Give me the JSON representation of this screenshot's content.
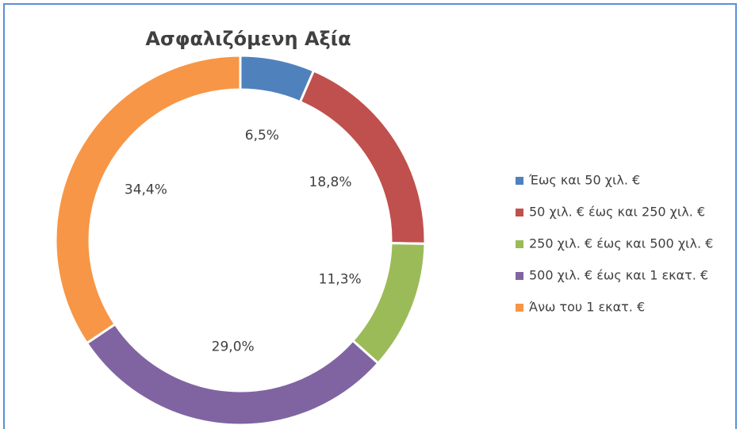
{
  "chart_data": {
    "type": "pie",
    "donut": true,
    "title": "Ασφαλιζόμενη Αξία",
    "categories": [
      "Έως και 50 χιλ. €",
      "50 χιλ. € έως και 250 χιλ. €",
      "250 χιλ. € έως και 500 χιλ. €",
      "500 χιλ. € έως και 1 εκατ. €",
      "Άνω του 1 εκατ. €"
    ],
    "values": [
      6.5,
      18.8,
      11.3,
      29.0,
      34.4
    ],
    "value_labels": [
      "6,5%",
      "18,8%",
      "11,3%",
      "29,0%",
      "34,4%"
    ],
    "colors": [
      "#4f81bd",
      "#c0504d",
      "#9bbb59",
      "#8064a2",
      "#f79646"
    ],
    "legend": "right"
  }
}
